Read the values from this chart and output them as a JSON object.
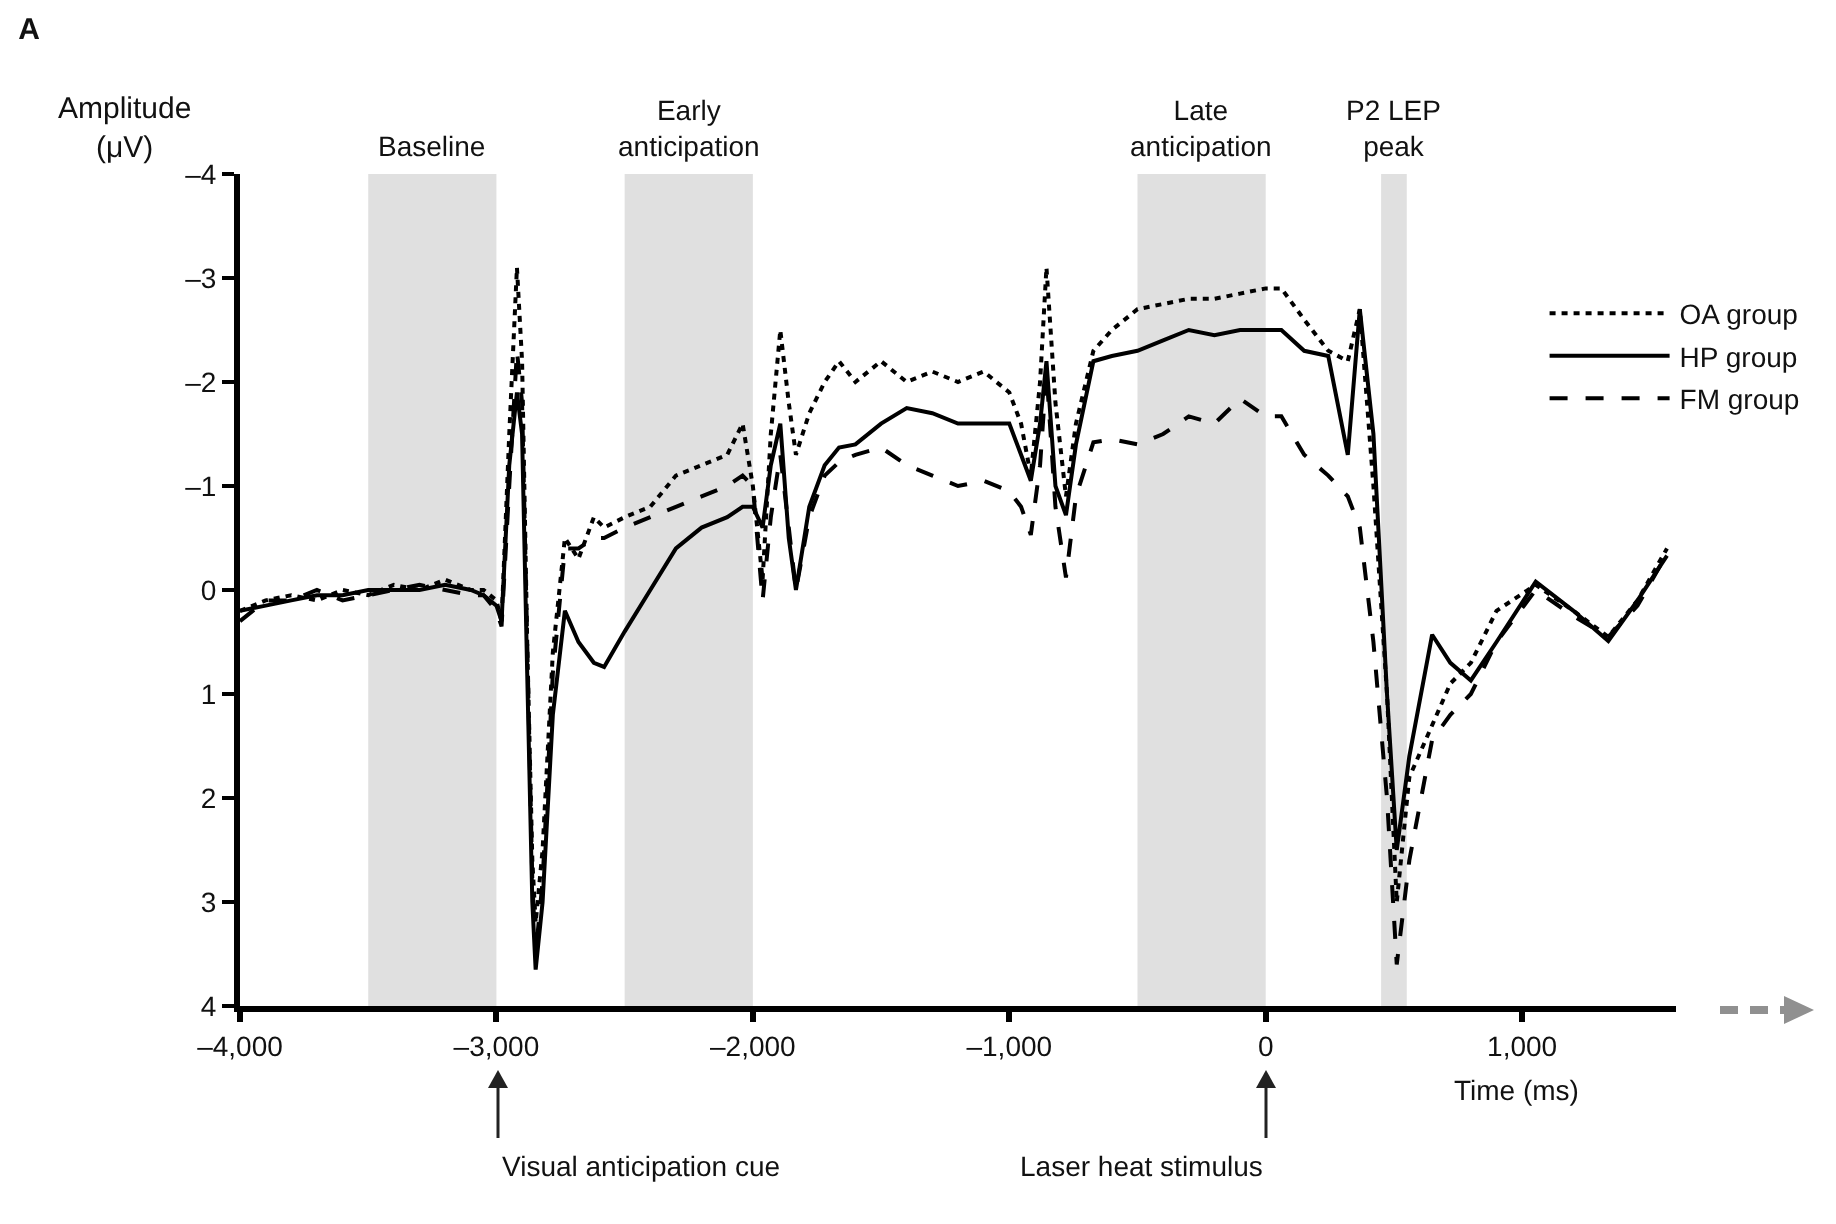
{
  "chart_data": {
    "type": "line",
    "title": "A",
    "xlabel": "Time (ms)",
    "ylabel": "Amplitude\n(μV)",
    "x": [
      -4000,
      -3900,
      -3800,
      -3700,
      -3600,
      -3500,
      -3400,
      -3300,
      -3200,
      -3100,
      -3050,
      -3000,
      -2980,
      -2950,
      -2920,
      -2900,
      -2880,
      -2860,
      -2847,
      -2820,
      -2780,
      -2733,
      -2680,
      -2620,
      -2580,
      -2500,
      -2400,
      -2300,
      -2200,
      -2100,
      -2040,
      -2000,
      -1962,
      -1930,
      -1893,
      -1860,
      -1832,
      -1780,
      -1720,
      -1664,
      -1600,
      -1500,
      -1400,
      -1300,
      -1200,
      -1100,
      -1000,
      -954,
      -916,
      -880,
      -855,
      -820,
      -779,
      -740,
      -672,
      -600,
      -500,
      -400,
      -300,
      -200,
      -100,
      0,
      61,
      150,
      244,
      320,
      367,
      420,
      473,
      511,
      560,
      649,
      720,
      800,
      900,
      1053,
      1200,
      1336,
      1450,
      1565
    ],
    "series": [
      {
        "name": "OA group",
        "color": "#000000",
        "line_style": "dotted",
        "values": [
          0.2,
          0.1,
          0.05,
          0.1,
          0.0,
          0.05,
          -0.05,
          0.0,
          -0.1,
          0.0,
          0.0,
          0.1,
          0.3,
          -1.5,
          -3.1,
          -2.2,
          0.5,
          2.6,
          3.2,
          2.5,
          0.6,
          -0.5,
          -0.3,
          -0.7,
          -0.6,
          -0.7,
          -0.8,
          -1.1,
          -1.2,
          -1.3,
          -1.6,
          -1.0,
          -0.1,
          -1.5,
          -2.5,
          -1.8,
          -1.3,
          -1.7,
          -2.0,
          -2.2,
          -2.0,
          -2.2,
          -2.0,
          -2.1,
          -2.0,
          -2.1,
          -1.9,
          -1.6,
          -1.1,
          -2.0,
          -3.1,
          -1.8,
          -0.9,
          -1.6,
          -2.3,
          -2.5,
          -2.7,
          -2.75,
          -2.8,
          -2.8,
          -2.85,
          -2.9,
          -2.9,
          -2.6,
          -2.3,
          -2.2,
          -2.7,
          -1.0,
          1.0,
          3.0,
          1.8,
          1.3,
          0.9,
          0.7,
          0.2,
          -0.05,
          0.2,
          0.45,
          0.1,
          -0.4
        ]
      },
      {
        "name": "HP group",
        "color": "#000000",
        "line_style": "solid",
        "values": [
          0.2,
          0.15,
          0.1,
          0.05,
          0.05,
          0.0,
          0.0,
          0.0,
          -0.05,
          0.0,
          0.05,
          0.15,
          0.3,
          -1.2,
          -1.9,
          -1.5,
          0.8,
          3.0,
          3.65,
          3.0,
          1.2,
          0.2,
          0.5,
          0.7,
          0.74,
          0.4,
          0.0,
          -0.4,
          -0.6,
          -0.7,
          -0.8,
          -0.8,
          -0.6,
          -1.2,
          -1.6,
          -0.5,
          0.0,
          -0.8,
          -1.2,
          -1.37,
          -1.4,
          -1.6,
          -1.75,
          -1.7,
          -1.6,
          -1.6,
          -1.6,
          -1.3,
          -1.05,
          -1.6,
          -2.2,
          -1.0,
          -0.72,
          -1.4,
          -2.2,
          -2.25,
          -2.3,
          -2.4,
          -2.5,
          -2.45,
          -2.5,
          -2.5,
          -2.5,
          -2.3,
          -2.25,
          -1.3,
          -2.7,
          -1.5,
          1.0,
          2.5,
          1.6,
          0.43,
          0.7,
          0.87,
          0.5,
          -0.08,
          0.2,
          0.49,
          0.1,
          -0.33
        ]
      },
      {
        "name": "FM group",
        "color": "#000000",
        "line_style": "dashed",
        "values": [
          0.3,
          0.1,
          0.1,
          0.0,
          0.1,
          0.05,
          0.0,
          -0.05,
          0.0,
          0.05,
          0.05,
          0.2,
          0.35,
          -1.0,
          -2.3,
          -1.8,
          0.5,
          2.8,
          3.5,
          2.8,
          0.8,
          -0.4,
          -0.4,
          -0.5,
          -0.5,
          -0.6,
          -0.7,
          -0.8,
          -0.9,
          -1.0,
          -1.1,
          -1.0,
          0.1,
          -0.7,
          -1.3,
          -0.6,
          0.0,
          -0.7,
          -1.1,
          -1.23,
          -1.3,
          -1.37,
          -1.2,
          -1.1,
          -1.0,
          -1.05,
          -0.95,
          -0.8,
          -0.53,
          -1.2,
          -2.1,
          -0.8,
          -0.12,
          -0.9,
          -1.42,
          -1.45,
          -1.4,
          -1.5,
          -1.67,
          -1.6,
          -1.84,
          -1.67,
          -1.67,
          -1.3,
          -1.1,
          -0.9,
          -0.6,
          0.5,
          2.0,
          3.6,
          2.6,
          1.44,
          1.2,
          1.0,
          0.5,
          0.0,
          0.25,
          0.45,
          0.15,
          -0.35
        ]
      }
    ],
    "xlim": [
      -4000,
      1600
    ],
    "xticks": [
      {
        "value": -4000,
        "label": "–4,000"
      },
      {
        "value": -3000,
        "label": "–3,000"
      },
      {
        "value": -2000,
        "label": "–2,000"
      },
      {
        "value": -1000,
        "label": "–1,000"
      },
      0,
      {
        "value": 1000,
        "label": "1,000"
      }
    ],
    "ylim": [
      4,
      -4
    ],
    "yticks": [
      {
        "value": -4,
        "label": "–4"
      },
      {
        "value": -3,
        "label": "–3"
      },
      {
        "value": -2,
        "label": "–2"
      },
      {
        "value": -1,
        "label": "–1"
      },
      0,
      1,
      2,
      3,
      4
    ],
    "bands": [
      {
        "axis": "x",
        "from": -3500,
        "to": -3000,
        "label": "Baseline",
        "color": "#e0e0e0"
      },
      {
        "axis": "x",
        "from": -2500,
        "to": -2000,
        "label": "Early\nanticipation",
        "color": "#e0e0e0"
      },
      {
        "axis": "x",
        "from": -500,
        "to": 0,
        "label": "Late\nanticipation",
        "color": "#e0e0e0"
      },
      {
        "axis": "x",
        "from": 450,
        "to": 550,
        "label": "P2 LEP\npeak",
        "color": "#e0e0e0"
      }
    ],
    "annotations": [
      "Visual anticipation cue",
      "Laser heat stimulus"
    ],
    "grid": false,
    "legend": "top right"
  }
}
